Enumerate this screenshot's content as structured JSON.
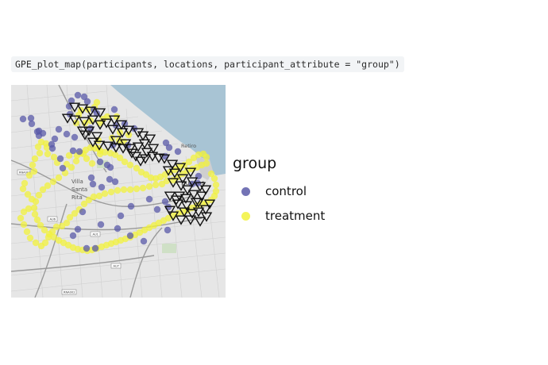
{
  "code": {
    "text": "GPE_plot_map(participants, locations, participant_attribute = \"group\")"
  },
  "map": {
    "place_labels": [
      "Retiro",
      "Villa",
      "Santa",
      "Rita",
      "Buenos"
    ],
    "road_labels": [
      "RNA001",
      "AU6",
      "AU1",
      "AU7",
      "RNA002"
    ]
  },
  "legend": {
    "title": "group",
    "items": [
      {
        "label": "control",
        "color": "#5a5aa8"
      },
      {
        "label": "treatment",
        "color": "#f2f23c"
      }
    ]
  },
  "colors": {
    "water": "#a8c4d4",
    "land": "#e6e6e6",
    "control": "#5a5aa8",
    "treatment": "#f2f23c"
  },
  "markers": {
    "control": [
      [
        15,
        43
      ],
      [
        25,
        42
      ],
      [
        26,
        49
      ],
      [
        35,
        58
      ],
      [
        33,
        59
      ],
      [
        40,
        61
      ],
      [
        35,
        64
      ],
      [
        55,
        68
      ],
      [
        51,
        75
      ],
      [
        52,
        80
      ],
      [
        60,
        56
      ],
      [
        70,
        62
      ],
      [
        65,
        105
      ],
      [
        62,
        93
      ],
      [
        86,
        84
      ],
      [
        103,
        125
      ],
      [
        84,
        182
      ],
      [
        113,
        176
      ],
      [
        134,
        181
      ],
      [
        131,
        122
      ],
      [
        138,
        165
      ],
      [
        151,
        153
      ],
      [
        174,
        144
      ],
      [
        184,
        157
      ],
      [
        90,
        160
      ],
      [
        78,
        190
      ],
      [
        95,
        206
      ],
      [
        106,
        206
      ],
      [
        150,
        190
      ],
      [
        167,
        197
      ],
      [
        194,
        147
      ],
      [
        198,
        154
      ],
      [
        197,
        183
      ],
      [
        236,
        115
      ],
      [
        235,
        124
      ],
      [
        228,
        125
      ],
      [
        130,
        31
      ],
      [
        80,
        66
      ],
      [
        100,
        55
      ],
      [
        78,
        83
      ],
      [
        101,
        117
      ],
      [
        114,
        129
      ],
      [
        199,
        79
      ],
      [
        195,
        73
      ],
      [
        210,
        84
      ],
      [
        194,
        90
      ],
      [
        155,
        55
      ],
      [
        143,
        49
      ],
      [
        147,
        76
      ],
      [
        132,
        51
      ],
      [
        128,
        76
      ],
      [
        121,
        101
      ],
      [
        112,
        97
      ],
      [
        125,
        104
      ],
      [
        124,
        119
      ],
      [
        108,
        36
      ],
      [
        104,
        31
      ],
      [
        96,
        21
      ],
      [
        92,
        15
      ],
      [
        84,
        13
      ],
      [
        76,
        20
      ],
      [
        73,
        27
      ],
      [
        74,
        37
      ]
    ],
    "treatment": [
      [
        108,
        22
      ],
      [
        105,
        28
      ],
      [
        97,
        31
      ],
      [
        88,
        32
      ],
      [
        85,
        38
      ],
      [
        82,
        48
      ],
      [
        93,
        48
      ],
      [
        100,
        45
      ],
      [
        112,
        48
      ],
      [
        116,
        43
      ],
      [
        121,
        40
      ],
      [
        133,
        40
      ],
      [
        137,
        60
      ],
      [
        148,
        63
      ],
      [
        142,
        72
      ],
      [
        136,
        70
      ],
      [
        127,
        67
      ],
      [
        110,
        70
      ],
      [
        110,
        80
      ],
      [
        112,
        87
      ],
      [
        102,
        99
      ],
      [
        95,
        93
      ],
      [
        91,
        87
      ],
      [
        83,
        89
      ],
      [
        73,
        89
      ],
      [
        70,
        100
      ],
      [
        58,
        98
      ],
      [
        54,
        91
      ],
      [
        46,
        87
      ],
      [
        45,
        79
      ],
      [
        44,
        74
      ],
      [
        38,
        72
      ],
      [
        34,
        78
      ],
      [
        36,
        86
      ],
      [
        30,
        93
      ],
      [
        27,
        101
      ],
      [
        29,
        109
      ],
      [
        23,
        114
      ],
      [
        17,
        124
      ],
      [
        15,
        131
      ],
      [
        21,
        138
      ],
      [
        26,
        144
      ],
      [
        22,
        156
      ],
      [
        16,
        160
      ],
      [
        12,
        168
      ],
      [
        16,
        176
      ],
      [
        20,
        185
      ],
      [
        24,
        193
      ],
      [
        31,
        199
      ],
      [
        38,
        203
      ],
      [
        43,
        199
      ],
      [
        47,
        192
      ],
      [
        52,
        185
      ],
      [
        57,
        179
      ],
      [
        64,
        178
      ],
      [
        70,
        174
      ],
      [
        74,
        167
      ],
      [
        80,
        162
      ],
      [
        86,
        157
      ],
      [
        92,
        150
      ],
      [
        98,
        145
      ],
      [
        104,
        141
      ],
      [
        111,
        140
      ],
      [
        118,
        137
      ],
      [
        126,
        135
      ],
      [
        134,
        133
      ],
      [
        142,
        132
      ],
      [
        150,
        132
      ],
      [
        158,
        131
      ],
      [
        166,
        130
      ],
      [
        174,
        128
      ],
      [
        182,
        126
      ],
      [
        190,
        125
      ],
      [
        196,
        121
      ],
      [
        204,
        120
      ],
      [
        210,
        116
      ],
      [
        216,
        112
      ],
      [
        222,
        108
      ],
      [
        228,
        106
      ],
      [
        234,
        104
      ],
      [
        240,
        101
      ],
      [
        246,
        99
      ],
      [
        246,
        91
      ],
      [
        242,
        87
      ],
      [
        236,
        88
      ],
      [
        230,
        92
      ],
      [
        224,
        97
      ],
      [
        218,
        101
      ],
      [
        212,
        103
      ],
      [
        206,
        107
      ],
      [
        200,
        110
      ],
      [
        194,
        113
      ],
      [
        188,
        116
      ],
      [
        182,
        118
      ],
      [
        176,
        117
      ],
      [
        170,
        113
      ],
      [
        164,
        110
      ],
      [
        158,
        105
      ],
      [
        150,
        101
      ],
      [
        143,
        97
      ],
      [
        137,
        92
      ],
      [
        131,
        88
      ],
      [
        125,
        86
      ],
      [
        118,
        85
      ],
      [
        112,
        83
      ],
      [
        106,
        80
      ],
      [
        100,
        79
      ],
      [
        94,
        82
      ],
      [
        88,
        86
      ],
      [
        82,
        96
      ],
      [
        76,
        104
      ],
      [
        68,
        111
      ],
      [
        60,
        117
      ],
      [
        53,
        122
      ],
      [
        46,
        127
      ],
      [
        40,
        132
      ],
      [
        35,
        139
      ],
      [
        31,
        147
      ],
      [
        29,
        155
      ],
      [
        30,
        163
      ],
      [
        33,
        170
      ],
      [
        37,
        177
      ],
      [
        42,
        183
      ],
      [
        48,
        188
      ],
      [
        54,
        192
      ],
      [
        60,
        196
      ],
      [
        66,
        199
      ],
      [
        72,
        202
      ],
      [
        78,
        205
      ],
      [
        84,
        207
      ],
      [
        90,
        208
      ],
      [
        96,
        209
      ],
      [
        102,
        208
      ],
      [
        108,
        206
      ],
      [
        114,
        204
      ],
      [
        120,
        202
      ],
      [
        126,
        200
      ],
      [
        132,
        198
      ],
      [
        138,
        196
      ],
      [
        144,
        194
      ],
      [
        150,
        192
      ],
      [
        156,
        189
      ],
      [
        162,
        186
      ],
      [
        168,
        183
      ],
      [
        174,
        180
      ],
      [
        180,
        177
      ],
      [
        186,
        174
      ],
      [
        192,
        171
      ],
      [
        198,
        168
      ],
      [
        204,
        165
      ],
      [
        210,
        162
      ],
      [
        216,
        160
      ],
      [
        222,
        158
      ],
      [
        228,
        155
      ],
      [
        234,
        152
      ],
      [
        240,
        150
      ],
      [
        246,
        148
      ],
      [
        252,
        145
      ],
      [
        256,
        140
      ],
      [
        258,
        134
      ],
      [
        258,
        126
      ],
      [
        256,
        118
      ],
      [
        252,
        112
      ]
    ],
    "triangles": [
      [
        80,
        28
      ],
      [
        90,
        30
      ],
      [
        100,
        33
      ],
      [
        112,
        35
      ],
      [
        71,
        42
      ],
      [
        80,
        44
      ],
      [
        92,
        46
      ],
      [
        103,
        44
      ],
      [
        112,
        50
      ],
      [
        120,
        48
      ],
      [
        130,
        44
      ],
      [
        139,
        50
      ],
      [
        128,
        56
      ],
      [
        140,
        60
      ],
      [
        148,
        57
      ],
      [
        160,
        60
      ],
      [
        166,
        64
      ],
      [
        175,
        68
      ],
      [
        168,
        74
      ],
      [
        160,
        78
      ],
      [
        150,
        80
      ],
      [
        141,
        80
      ],
      [
        132,
        79
      ],
      [
        122,
        77
      ],
      [
        111,
        76
      ],
      [
        103,
        72
      ],
      [
        108,
        65
      ],
      [
        93,
        63
      ],
      [
        98,
        58
      ],
      [
        90,
        58
      ],
      [
        132,
        70
      ],
      [
        144,
        74
      ],
      [
        152,
        86
      ],
      [
        157,
        90
      ],
      [
        163,
        96
      ],
      [
        169,
        93
      ],
      [
        178,
        90
      ],
      [
        186,
        92
      ],
      [
        171,
        85
      ],
      [
        179,
        80
      ],
      [
        193,
        93
      ],
      [
        203,
        100
      ],
      [
        213,
        104
      ],
      [
        226,
        110
      ],
      [
        198,
        108
      ],
      [
        206,
        111
      ],
      [
        216,
        118
      ],
      [
        228,
        122
      ],
      [
        238,
        128
      ],
      [
        204,
        123
      ],
      [
        214,
        127
      ],
      [
        222,
        132
      ],
      [
        230,
        138
      ],
      [
        240,
        140
      ],
      [
        245,
        132
      ],
      [
        236,
        148
      ],
      [
        221,
        152
      ],
      [
        210,
        150
      ],
      [
        200,
        140
      ],
      [
        208,
        145
      ],
      [
        218,
        160
      ],
      [
        228,
        162
      ],
      [
        236,
        160
      ],
      [
        245,
        157
      ],
      [
        250,
        150
      ],
      [
        246,
        166
      ],
      [
        238,
        172
      ],
      [
        226,
        170
      ],
      [
        214,
        170
      ],
      [
        204,
        165
      ],
      [
        200,
        158
      ],
      [
        212,
        140
      ],
      [
        220,
        143
      ],
      [
        233,
        148
      ]
    ]
  }
}
